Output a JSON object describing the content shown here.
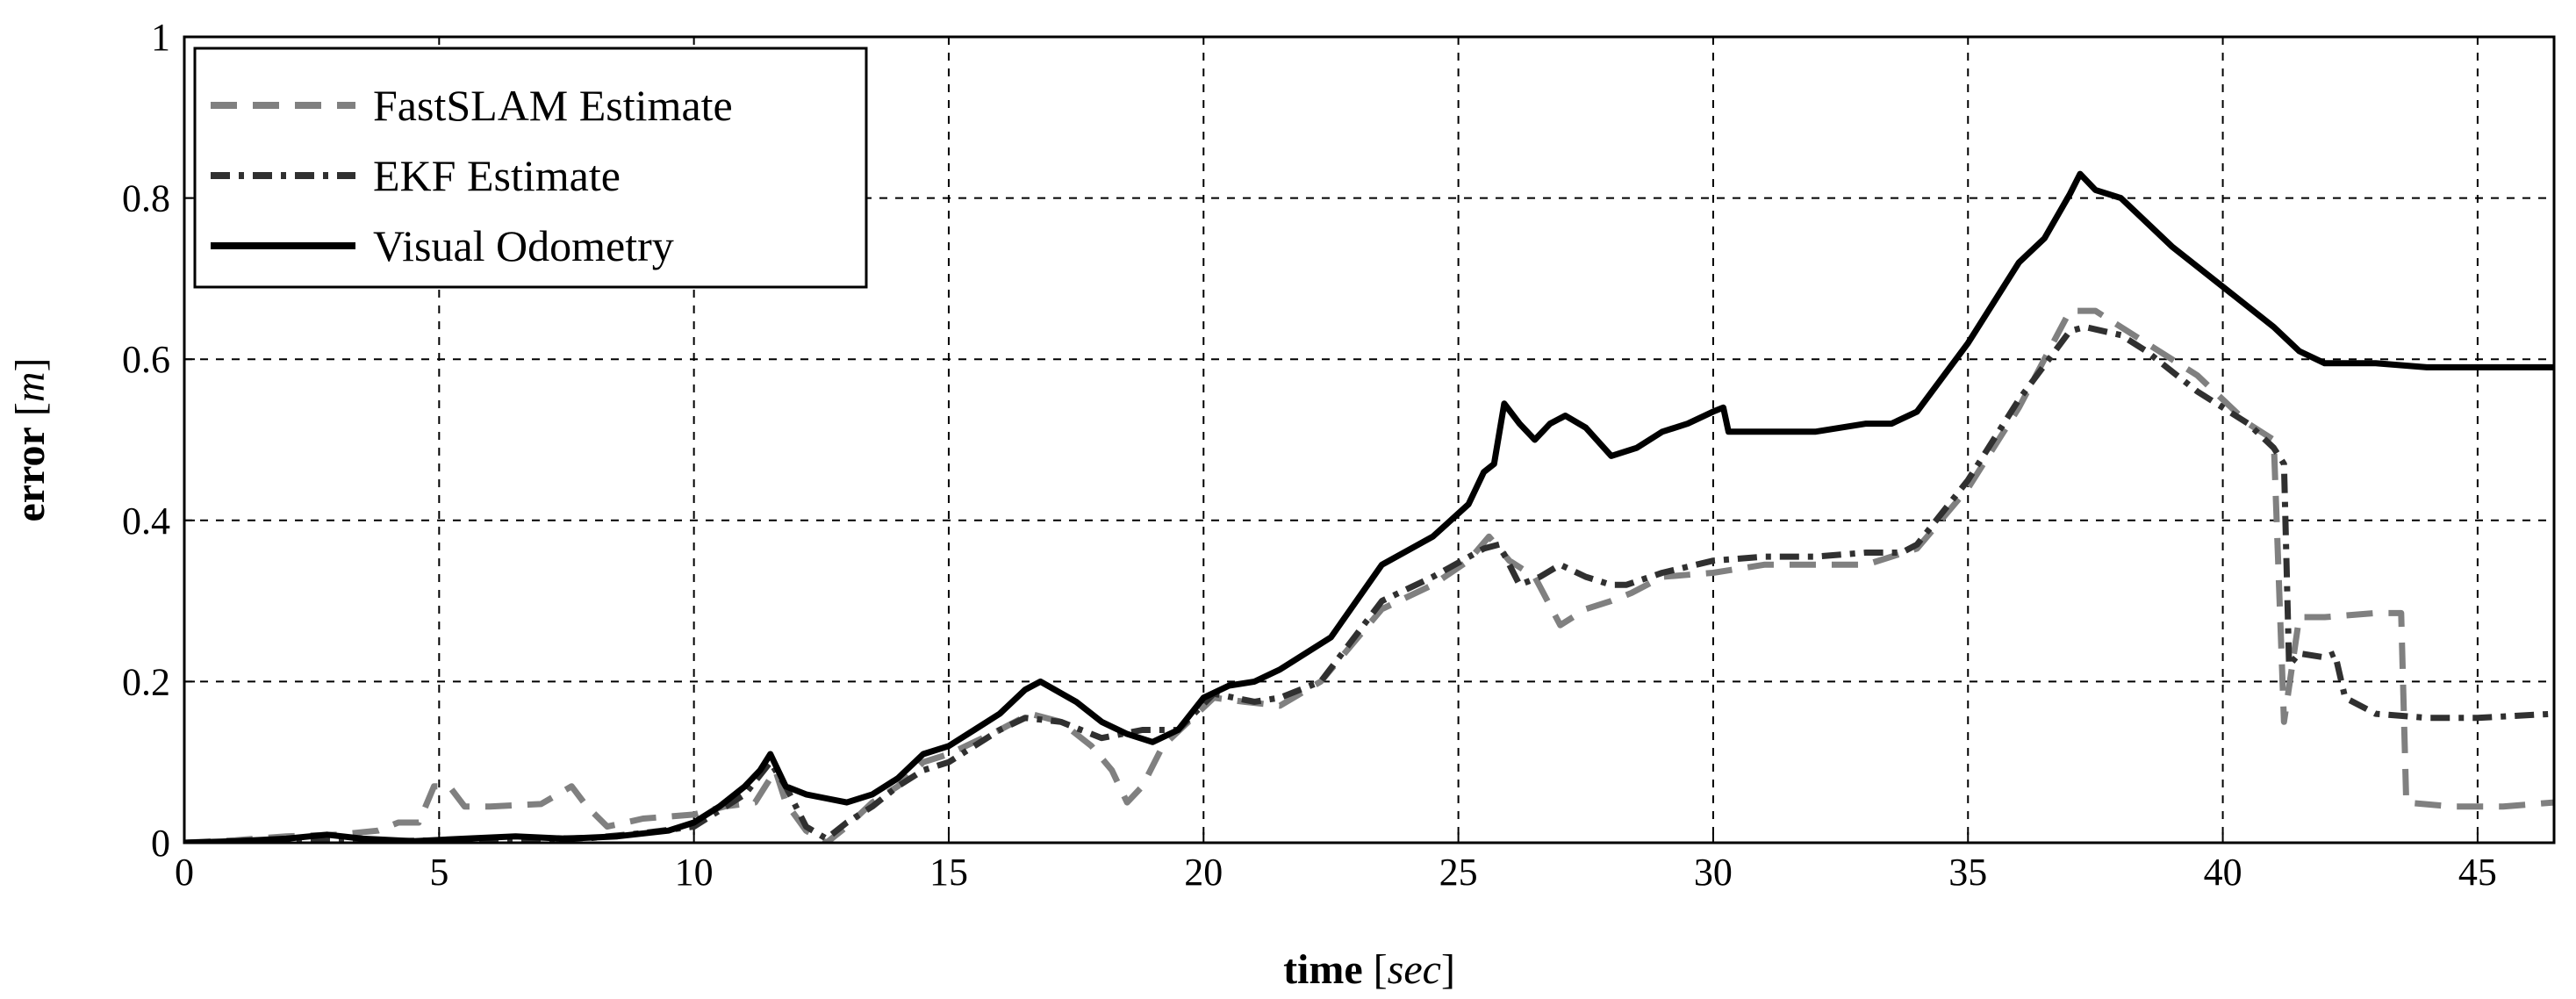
{
  "chart_data": {
    "type": "line",
    "xlabel": {
      "main": "time",
      "open": " [",
      "unit": "sec",
      "close": "]"
    },
    "ylabel": {
      "main": "error",
      "open": " [",
      "unit": "m",
      "close": "]"
    },
    "xlim": [
      0,
      46.5
    ],
    "ylim": [
      0,
      1
    ],
    "xticks": [
      0,
      5,
      10,
      15,
      20,
      25,
      30,
      35,
      40,
      45
    ],
    "xtick_labels": [
      "0",
      "5",
      "10",
      "15",
      "20",
      "25",
      "30",
      "35",
      "40",
      "45"
    ],
    "yticks": [
      0,
      0.2,
      0.4,
      0.6,
      0.8,
      1
    ],
    "ytick_labels": [
      "0",
      "0.2",
      "0.4",
      "0.6",
      "0.8",
      "1"
    ],
    "grid": true,
    "legend_position": "top-left",
    "series": [
      {
        "name": "FastSLAM Estimate",
        "color": "#808080",
        "style": "dashed",
        "points": [
          [
            0,
            0.0
          ],
          [
            1,
            0.003
          ],
          [
            2,
            0.008
          ],
          [
            3,
            0.01
          ],
          [
            3.8,
            0.015
          ],
          [
            4.2,
            0.025
          ],
          [
            4.6,
            0.025
          ],
          [
            4.9,
            0.07
          ],
          [
            5.2,
            0.07
          ],
          [
            5.5,
            0.045
          ],
          [
            6,
            0.045
          ],
          [
            7,
            0.048
          ],
          [
            7.6,
            0.07
          ],
          [
            7.9,
            0.045
          ],
          [
            8.3,
            0.02
          ],
          [
            9,
            0.03
          ],
          [
            10,
            0.035
          ],
          [
            10.6,
            0.045
          ],
          [
            11.2,
            0.05
          ],
          [
            11.6,
            0.09
          ],
          [
            11.8,
            0.05
          ],
          [
            12.2,
            0.015
          ],
          [
            12.6,
            0.0
          ],
          [
            13,
            0.02
          ],
          [
            13.5,
            0.05
          ],
          [
            14,
            0.07
          ],
          [
            14.5,
            0.1
          ],
          [
            15,
            0.11
          ],
          [
            16,
            0.14
          ],
          [
            16.6,
            0.16
          ],
          [
            17.2,
            0.15
          ],
          [
            17.8,
            0.12
          ],
          [
            18.2,
            0.09
          ],
          [
            18.5,
            0.05
          ],
          [
            18.8,
            0.07
          ],
          [
            19.2,
            0.12
          ],
          [
            19.7,
            0.15
          ],
          [
            20.2,
            0.18
          ],
          [
            20.8,
            0.175
          ],
          [
            21.5,
            0.17
          ],
          [
            22.3,
            0.2
          ],
          [
            23.5,
            0.29
          ],
          [
            24.5,
            0.32
          ],
          [
            25.2,
            0.35
          ],
          [
            25.6,
            0.38
          ],
          [
            26,
            0.35
          ],
          [
            26.5,
            0.33
          ],
          [
            27,
            0.27
          ],
          [
            27.5,
            0.29
          ],
          [
            28,
            0.3
          ],
          [
            28.4,
            0.31
          ],
          [
            29,
            0.33
          ],
          [
            30,
            0.335
          ],
          [
            31,
            0.345
          ],
          [
            32,
            0.345
          ],
          [
            33,
            0.345
          ],
          [
            34,
            0.365
          ],
          [
            35,
            0.44
          ],
          [
            36,
            0.54
          ],
          [
            37,
            0.66
          ],
          [
            37.5,
            0.66
          ],
          [
            38.5,
            0.62
          ],
          [
            39.5,
            0.58
          ],
          [
            40.5,
            0.52
          ],
          [
            41,
            0.5
          ],
          [
            41.2,
            0.15
          ],
          [
            41.5,
            0.28
          ],
          [
            42,
            0.28
          ],
          [
            43,
            0.285
          ],
          [
            43.5,
            0.285
          ],
          [
            43.6,
            0.05
          ],
          [
            44.5,
            0.045
          ],
          [
            45.5,
            0.045
          ],
          [
            46.5,
            0.05
          ]
        ]
      },
      {
        "name": "EKF Estimate",
        "color": "#303030",
        "style": "dashdot",
        "points": [
          [
            0,
            0.0
          ],
          [
            2,
            0.003
          ],
          [
            4,
            0.002
          ],
          [
            6,
            0.004
          ],
          [
            8,
            0.006
          ],
          [
            9,
            0.012
          ],
          [
            10,
            0.02
          ],
          [
            10.5,
            0.04
          ],
          [
            11,
            0.06
          ],
          [
            11.5,
            0.1
          ],
          [
            11.8,
            0.07
          ],
          [
            12.2,
            0.02
          ],
          [
            12.6,
            0.005
          ],
          [
            13,
            0.025
          ],
          [
            13.5,
            0.045
          ],
          [
            14,
            0.07
          ],
          [
            14.5,
            0.09
          ],
          [
            15,
            0.1
          ],
          [
            16,
            0.14
          ],
          [
            16.5,
            0.155
          ],
          [
            17.2,
            0.15
          ],
          [
            18,
            0.13
          ],
          [
            18.8,
            0.14
          ],
          [
            19.5,
            0.14
          ],
          [
            20.2,
            0.185
          ],
          [
            21,
            0.175
          ],
          [
            21.5,
            0.18
          ],
          [
            22.3,
            0.2
          ],
          [
            23.5,
            0.3
          ],
          [
            24.5,
            0.33
          ],
          [
            25.5,
            0.365
          ],
          [
            25.8,
            0.37
          ],
          [
            26.2,
            0.32
          ],
          [
            26.6,
            0.33
          ],
          [
            27,
            0.345
          ],
          [
            27.5,
            0.33
          ],
          [
            28,
            0.32
          ],
          [
            28.3,
            0.32
          ],
          [
            29,
            0.335
          ],
          [
            30,
            0.35
          ],
          [
            31,
            0.355
          ],
          [
            32,
            0.355
          ],
          [
            33,
            0.36
          ],
          [
            33.7,
            0.36
          ],
          [
            34,
            0.37
          ],
          [
            35,
            0.45
          ],
          [
            36,
            0.55
          ],
          [
            37,
            0.635
          ],
          [
            37.3,
            0.64
          ],
          [
            38,
            0.63
          ],
          [
            38.5,
            0.61
          ],
          [
            39.5,
            0.56
          ],
          [
            40.5,
            0.52
          ],
          [
            41,
            0.49
          ],
          [
            41.2,
            0.47
          ],
          [
            41.3,
            0.22
          ],
          [
            41.5,
            0.235
          ],
          [
            42,
            0.23
          ],
          [
            42.2,
            0.235
          ],
          [
            42.4,
            0.18
          ],
          [
            43,
            0.16
          ],
          [
            44,
            0.155
          ],
          [
            45,
            0.155
          ],
          [
            46.5,
            0.16
          ]
        ]
      },
      {
        "name": "Visual Odometry",
        "color": "#000000",
        "style": "solid",
        "points": [
          [
            0,
            0.0
          ],
          [
            1,
            0.002
          ],
          [
            2,
            0.005
          ],
          [
            2.8,
            0.01
          ],
          [
            3.5,
            0.005
          ],
          [
            4.5,
            0.002
          ],
          [
            5.5,
            0.005
          ],
          [
            6.5,
            0.008
          ],
          [
            7.5,
            0.005
          ],
          [
            8.5,
            0.008
          ],
          [
            9.5,
            0.015
          ],
          [
            10,
            0.025
          ],
          [
            10.5,
            0.045
          ],
          [
            11,
            0.07
          ],
          [
            11.3,
            0.09
          ],
          [
            11.5,
            0.11
          ],
          [
            11.8,
            0.07
          ],
          [
            12.2,
            0.06
          ],
          [
            12.6,
            0.055
          ],
          [
            13,
            0.05
          ],
          [
            13.5,
            0.06
          ],
          [
            14,
            0.08
          ],
          [
            14.5,
            0.11
          ],
          [
            15,
            0.12
          ],
          [
            15.5,
            0.14
          ],
          [
            16,
            0.16
          ],
          [
            16.5,
            0.19
          ],
          [
            16.8,
            0.2
          ],
          [
            17.5,
            0.175
          ],
          [
            18,
            0.15
          ],
          [
            18.5,
            0.135
          ],
          [
            19,
            0.125
          ],
          [
            19.5,
            0.14
          ],
          [
            20,
            0.18
          ],
          [
            20.5,
            0.195
          ],
          [
            21,
            0.2
          ],
          [
            21.5,
            0.215
          ],
          [
            22.5,
            0.255
          ],
          [
            23.5,
            0.345
          ],
          [
            24.5,
            0.38
          ],
          [
            25.2,
            0.42
          ],
          [
            25.5,
            0.46
          ],
          [
            25.7,
            0.47
          ],
          [
            25.9,
            0.545
          ],
          [
            26.2,
            0.52
          ],
          [
            26.5,
            0.5
          ],
          [
            26.8,
            0.52
          ],
          [
            27.1,
            0.53
          ],
          [
            27.5,
            0.515
          ],
          [
            28,
            0.48
          ],
          [
            28.5,
            0.49
          ],
          [
            29,
            0.51
          ],
          [
            29.5,
            0.52
          ],
          [
            30,
            0.535
          ],
          [
            30.2,
            0.54
          ],
          [
            30.3,
            0.51
          ],
          [
            31,
            0.51
          ],
          [
            32,
            0.51
          ],
          [
            33,
            0.52
          ],
          [
            33.5,
            0.52
          ],
          [
            34,
            0.535
          ],
          [
            35,
            0.62
          ],
          [
            36,
            0.72
          ],
          [
            36.5,
            0.75
          ],
          [
            37,
            0.805
          ],
          [
            37.2,
            0.83
          ],
          [
            37.5,
            0.81
          ],
          [
            38,
            0.8
          ],
          [
            39,
            0.74
          ],
          [
            40,
            0.69
          ],
          [
            41,
            0.64
          ],
          [
            41.5,
            0.61
          ],
          [
            42,
            0.595
          ],
          [
            43,
            0.595
          ],
          [
            44,
            0.59
          ],
          [
            45,
            0.59
          ],
          [
            46.5,
            0.59
          ]
        ]
      }
    ]
  }
}
